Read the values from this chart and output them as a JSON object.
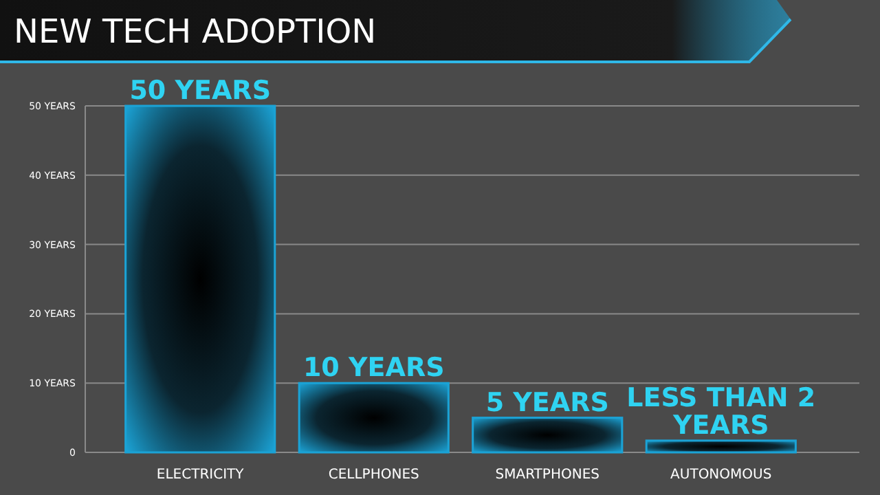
{
  "chart_data": {
    "type": "bar",
    "title": "NEW TECH ADOPTION",
    "categories": [
      "ELECTRICITY",
      "CELLPHONES",
      "SMARTPHONES",
      "AUTONOMOUS"
    ],
    "values": [
      50,
      10,
      5,
      1.7
    ],
    "value_labels": [
      "50 YEARS",
      "10 YEARS",
      "5 YEARS",
      "LESS THAN 2 YEARS"
    ],
    "color": "#1ba3d6",
    "ylim": [
      0,
      50
    ],
    "yticks": [
      0,
      {
        "value": 10,
        "label": "10 YEARS"
      },
      {
        "value": 20,
        "label": "20 YEARS"
      },
      {
        "value": 30,
        "label": "30 YEARS"
      },
      {
        "value": 40,
        "label": "40 YEARS"
      },
      {
        "value": 50,
        "label": "50 YEARS"
      }
    ],
    "grid": "y"
  }
}
